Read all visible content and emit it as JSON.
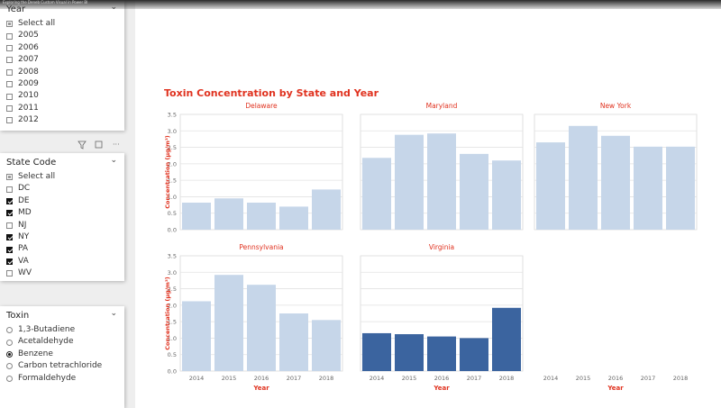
{
  "window": {
    "title": "Exploring the Deneb Custom Visual in Power BI"
  },
  "report_title": "Toxin Concentration by State and Year",
  "slicers": [
    {
      "title": "Year",
      "kind": "checkbox",
      "items": [
        {
          "label": "Select all",
          "checked": "partial"
        },
        {
          "label": "2005",
          "checked": false
        },
        {
          "label": "2006",
          "checked": false
        },
        {
          "label": "2007",
          "checked": false
        },
        {
          "label": "2008",
          "checked": false
        },
        {
          "label": "2009",
          "checked": false
        },
        {
          "label": "2010",
          "checked": false
        },
        {
          "label": "2011",
          "checked": false
        },
        {
          "label": "2012",
          "checked": false
        }
      ]
    },
    {
      "title": "State Code",
      "kind": "checkbox",
      "items": [
        {
          "label": "Select all",
          "checked": "partial"
        },
        {
          "label": "DC",
          "checked": false
        },
        {
          "label": "DE",
          "checked": true
        },
        {
          "label": "MD",
          "checked": true
        },
        {
          "label": "NJ",
          "checked": false
        },
        {
          "label": "NY",
          "checked": true
        },
        {
          "label": "PA",
          "checked": true
        },
        {
          "label": "VA",
          "checked": true
        },
        {
          "label": "WV",
          "checked": false
        }
      ]
    },
    {
      "title": "Toxin",
      "kind": "radio",
      "items": [
        {
          "label": "1,3-Butadiene",
          "checked": false
        },
        {
          "label": "Acetaldehyde",
          "checked": false
        },
        {
          "label": "Benzene",
          "checked": true
        },
        {
          "label": "Carbon tetrachloride",
          "checked": false
        },
        {
          "label": "Formaldehyde",
          "checked": false
        }
      ]
    }
  ],
  "chart_data": [
    {
      "type": "bar",
      "title": "Delaware",
      "ylabel": "Concentration (µg/m³)",
      "values": [
        0.82,
        0.95,
        0.82,
        0.7,
        1.22
      ],
      "color": "#c6d6e9",
      "ylim": [
        0,
        3.5
      ],
      "yticks": [
        {
          "value": 0,
          "label": "0.0"
        },
        0.5,
        {
          "value": 1,
          "label": "1.0"
        },
        1.5,
        {
          "value": 2,
          "label": "2.0"
        },
        2.5,
        {
          "value": 3,
          "label": "3.0"
        },
        3.5
      ]
    },
    {
      "type": "bar",
      "title": "Maryland",
      "values": [
        2.18,
        2.88,
        2.92,
        2.3,
        2.1
      ],
      "color": "#c6d6e9",
      "ylim": [
        0,
        3.5
      ],
      "ygrid": [
        0,
        0.5,
        1,
        1.5,
        2,
        2.5,
        3,
        3.5
      ]
    },
    {
      "type": "bar",
      "title": "New York",
      "values": [
        2.65,
        3.15,
        2.85,
        2.52,
        2.52
      ],
      "color": "#c6d6e9",
      "ylim": [
        0,
        3.5
      ],
      "ygrid": [
        0,
        0.5,
        1,
        1.5,
        2,
        2.5,
        3,
        3.5
      ]
    },
    {
      "type": "bar",
      "title": "Pennsylvania",
      "ylabel": "Concentration (µg/m³)",
      "xlabel": "Year",
      "categories": [
        "2014",
        "2015",
        "2016",
        "2017",
        "2018"
      ],
      "values": [
        2.12,
        2.92,
        2.62,
        1.75,
        1.55
      ],
      "color": "#c6d6e9",
      "ylim": [
        0,
        3.5
      ],
      "yticks": [
        {
          "value": 0,
          "label": "0.0"
        },
        0.5,
        {
          "value": 1,
          "label": "1.0"
        },
        1.5,
        {
          "value": 2,
          "label": "2.0"
        },
        2.5,
        {
          "value": 3,
          "label": "3.0"
        },
        3.5
      ]
    },
    {
      "type": "bar",
      "title": "Virginia",
      "xlabel": "Year",
      "categories": [
        "2014",
        "2015",
        "2016",
        "2017",
        "2018"
      ],
      "values": [
        1.15,
        1.12,
        1.05,
        1.0,
        1.92
      ],
      "color": "#3b649f",
      "ylim": [
        0,
        3.5
      ],
      "ygrid": [
        0,
        0.5,
        1,
        1.5,
        2,
        2.5,
        3,
        3.5
      ]
    },
    {
      "type": "bar",
      "xlabel": "Year",
      "categories": [
        "2014",
        "2015",
        "2016",
        "2017",
        "2018"
      ]
    }
  ]
}
